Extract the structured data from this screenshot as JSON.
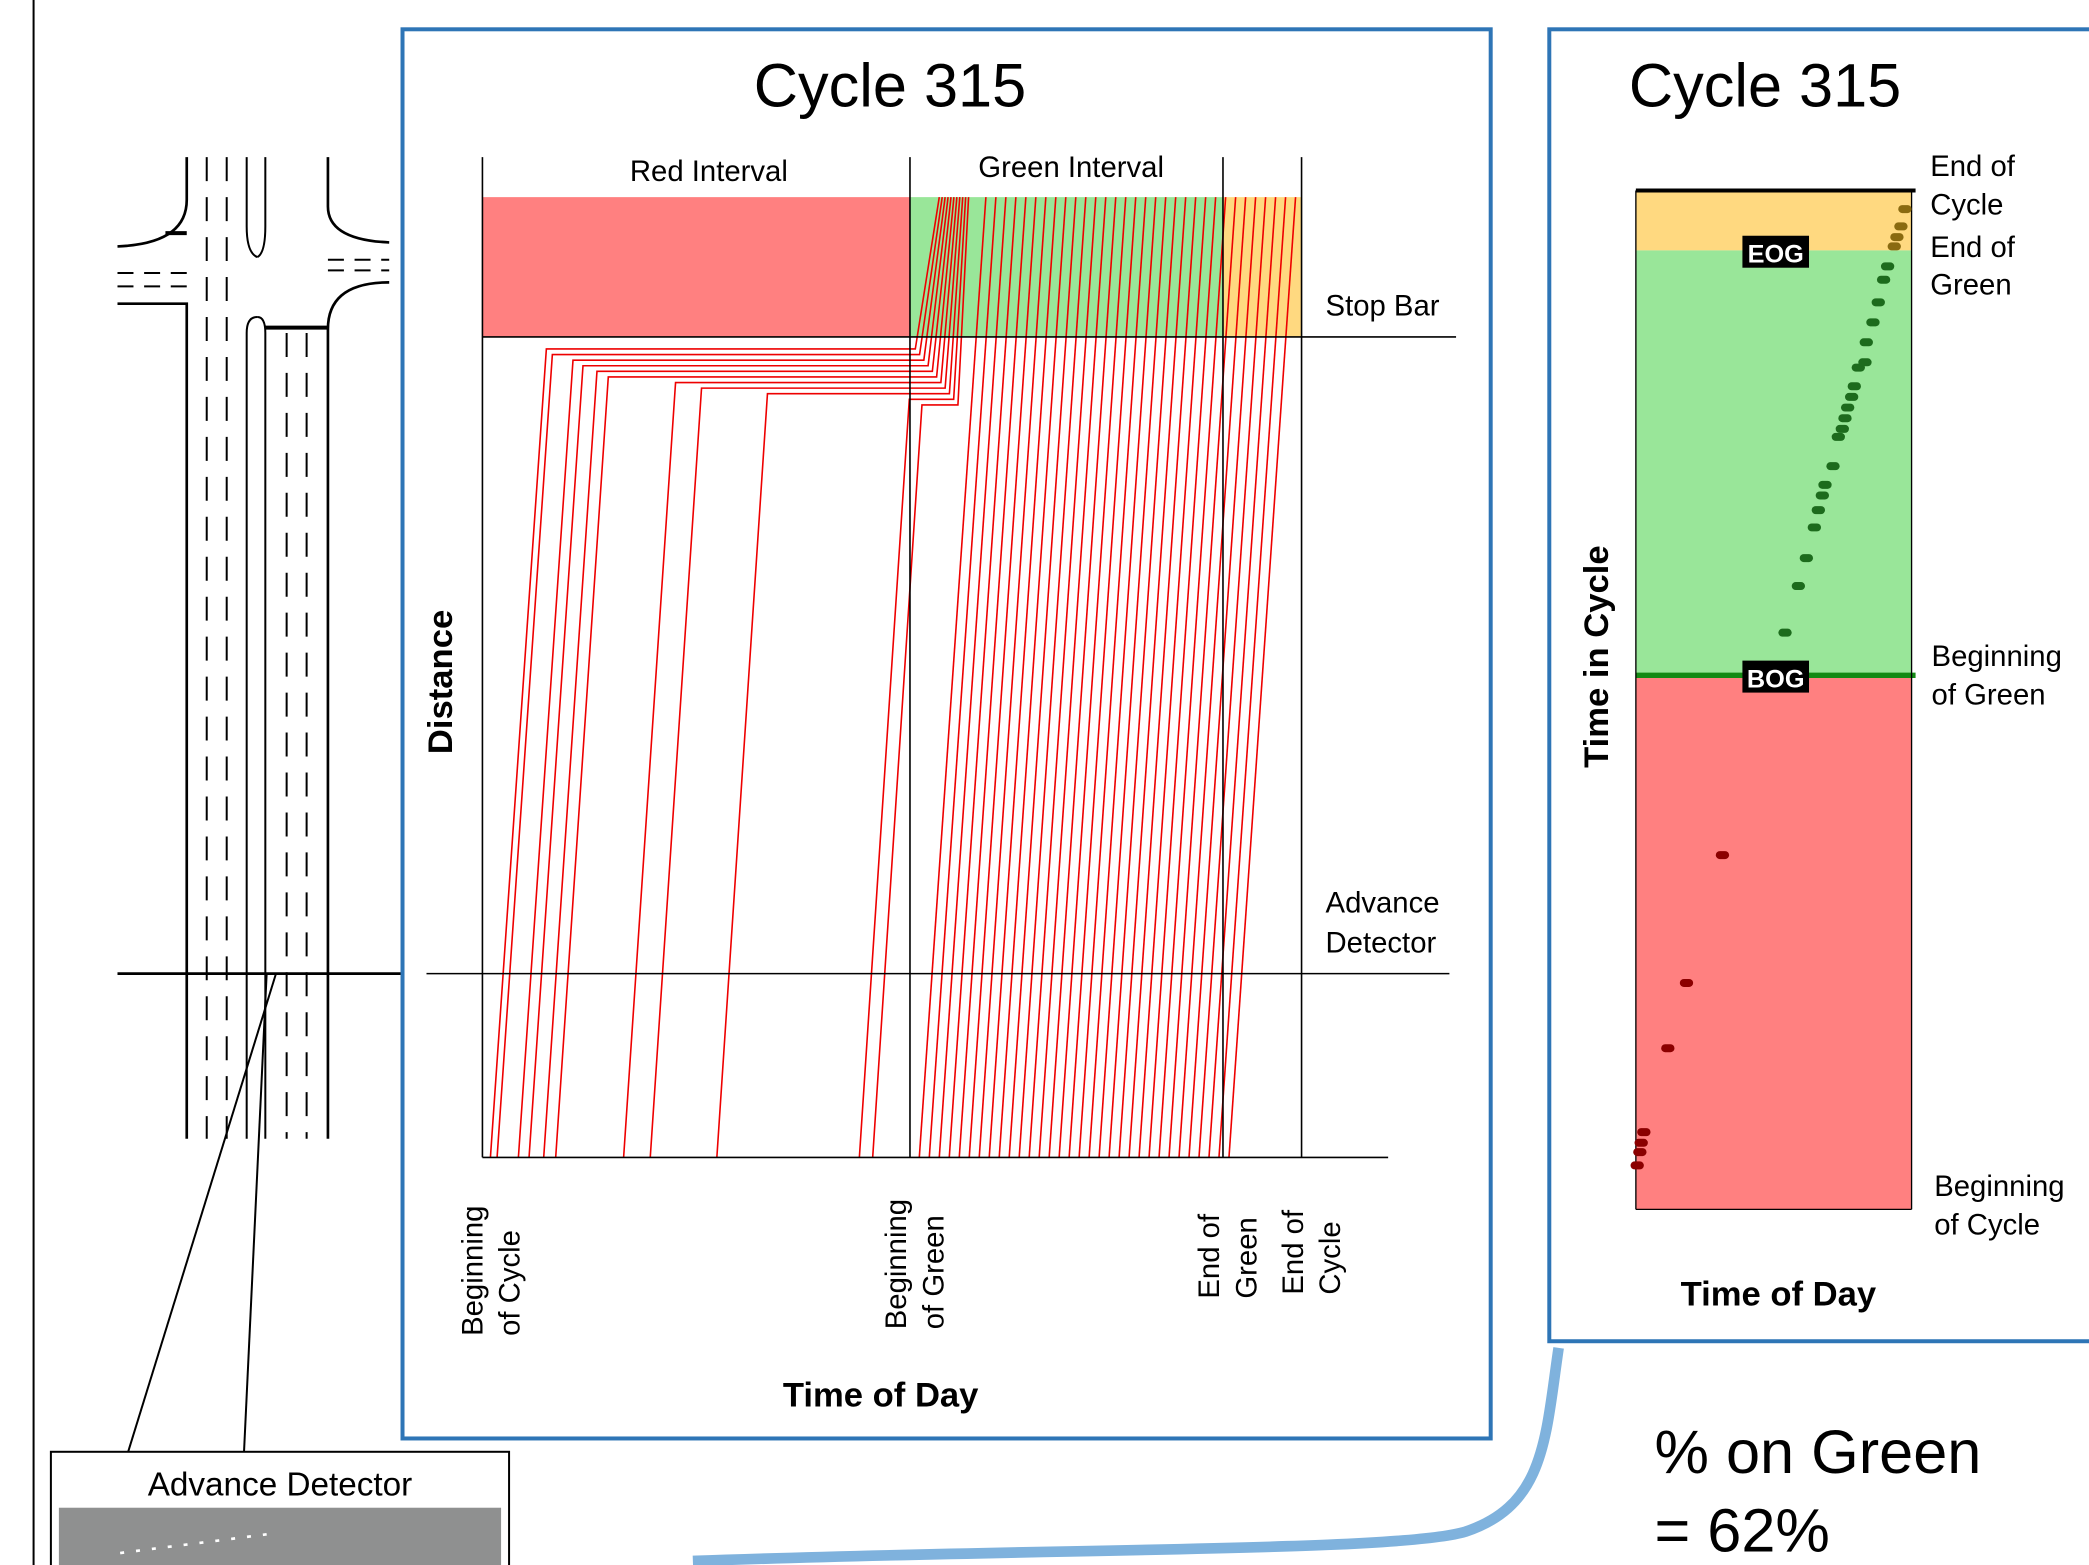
{
  "detector_box": {
    "label": "Advance Detector"
  },
  "time_space": {
    "title": "Cycle 315",
    "red_interval": "Red Interval",
    "green_interval": "Green Interval",
    "stop_bar": "Stop Bar",
    "advance_detector": [
      "Advance",
      "Detector"
    ],
    "x_labels": [
      [
        "Beginning",
        "of Cycle"
      ],
      [
        "Beginning",
        "of Green"
      ],
      [
        "End of",
        "Green"
      ],
      [
        "End of",
        "Cycle"
      ]
    ],
    "y_axis": "Distance",
    "x_axis": "Time of Day"
  },
  "coordination": {
    "title": "Cycle 315",
    "labels": [
      [
        "End of",
        "Cycle"
      ],
      [
        "End of",
        "Green"
      ],
      [
        "Beginning",
        "of Green"
      ],
      [
        "Beginning",
        "of Cycle"
      ]
    ],
    "eog": "EOG",
    "bog": "BOG",
    "y_axis": "Time in Cycle",
    "x_axis": "Time of Day"
  },
  "result": [
    "% on Green",
    "= 62%"
  ]
}
